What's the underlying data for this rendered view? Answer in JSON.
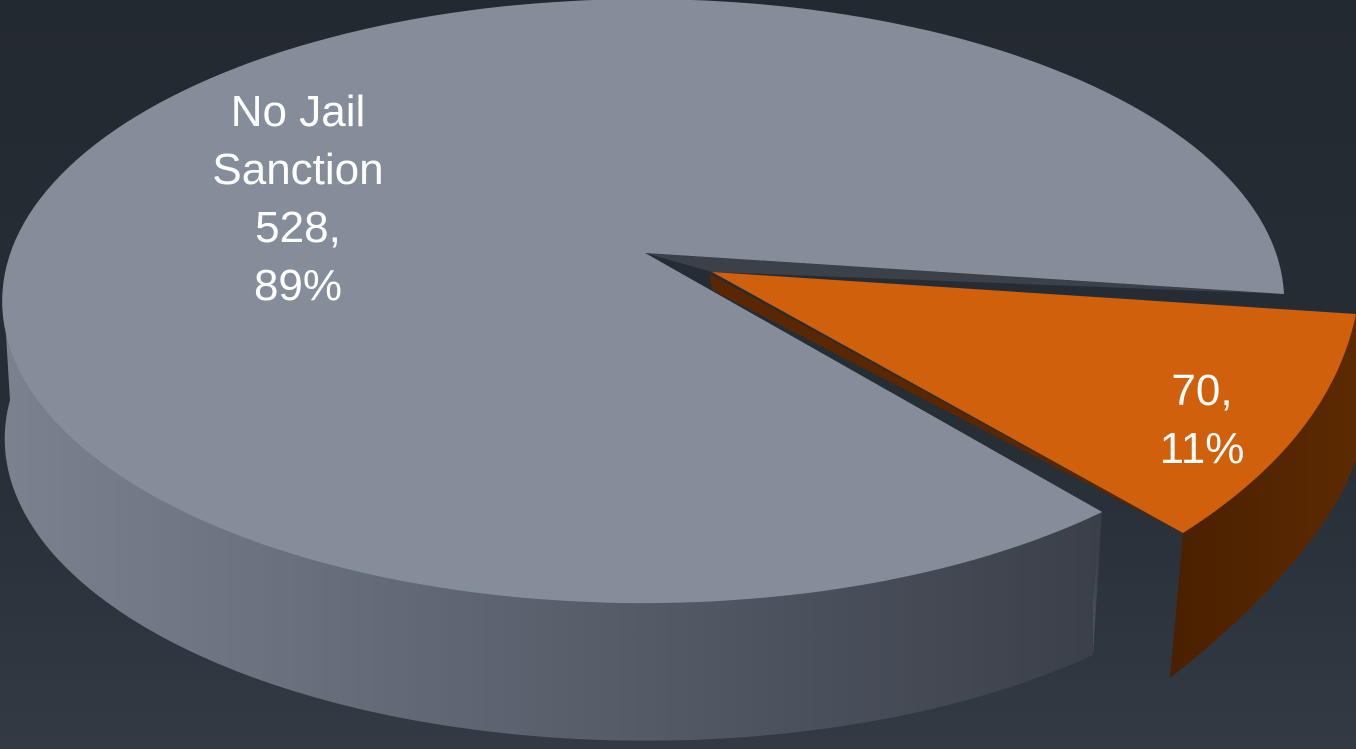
{
  "chart_data": {
    "type": "pie",
    "style": "3d-exploded",
    "title": "",
    "slices": [
      {
        "key": "no_jail",
        "label_lines": [
          "No Jail",
          "Sanction",
          "528,",
          "89%"
        ],
        "value": 528,
        "percent": 89,
        "color": "#858d9b",
        "side_color": "#5b626e"
      },
      {
        "key": "other",
        "label_lines": [
          "70,",
          "11%"
        ],
        "value": 70,
        "percent": 11,
        "color": "#d0600c",
        "side_color": "#5a2700"
      }
    ]
  }
}
